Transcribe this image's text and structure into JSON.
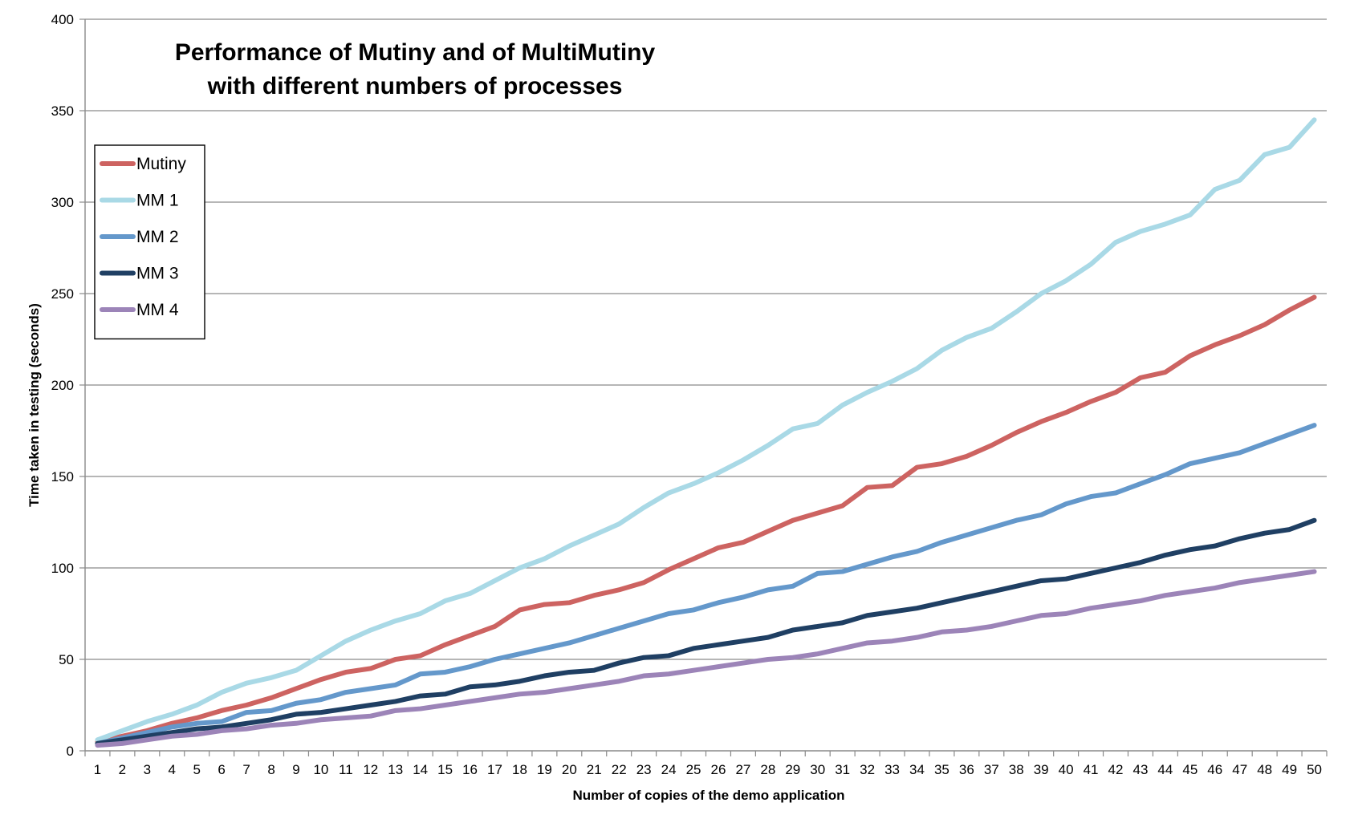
{
  "chart_data": {
    "type": "line",
    "title": [
      "Performance of Mutiny and of MultiMutiny",
      "with different numbers of processes"
    ],
    "xlabel": "Number of copies of the demo application",
    "ylabel": "Time taken in testing (seconds)",
    "ylim": [
      0,
      400
    ],
    "yticks": [
      0,
      50,
      100,
      150,
      200,
      250,
      300,
      350,
      400
    ],
    "grid": true,
    "legend_position": "top-left",
    "categories": [
      "1",
      "2",
      "3",
      "4",
      "5",
      "6",
      "7",
      "8",
      "9",
      "10",
      "11",
      "12",
      "13",
      "14",
      "15",
      "16",
      "17",
      "18",
      "19",
      "20",
      "21",
      "22",
      "23",
      "24",
      "25",
      "26",
      "27",
      "28",
      "29",
      "30",
      "31",
      "32",
      "33",
      "34",
      "35",
      "36",
      "37",
      "38",
      "39",
      "40",
      "41",
      "42",
      "43",
      "44",
      "45",
      "46",
      "47",
      "48",
      "49",
      "50"
    ],
    "series": [
      {
        "name": "Mutiny",
        "color": "#cd6361",
        "values": [
          5,
          8,
          11,
          15,
          18,
          22,
          25,
          29,
          34,
          39,
          43,
          45,
          50,
          52,
          58,
          63,
          68,
          77,
          80,
          81,
          85,
          88,
          92,
          99,
          105,
          111,
          114,
          120,
          126,
          130,
          134,
          144,
          145,
          155,
          157,
          161,
          167,
          174,
          180,
          185,
          191,
          196,
          204,
          207,
          216,
          222,
          227,
          233,
          241,
          248
        ]
      },
      {
        "name": "MM 1",
        "color": "#a9d9e6",
        "values": [
          6,
          11,
          16,
          20,
          25,
          32,
          37,
          40,
          44,
          52,
          60,
          66,
          71,
          75,
          82,
          86,
          93,
          100,
          105,
          112,
          118,
          124,
          133,
          141,
          146,
          152,
          159,
          167,
          176,
          179,
          189,
          196,
          202,
          209,
          219,
          226,
          231,
          240,
          250,
          257,
          266,
          278,
          284,
          288,
          293,
          307,
          312,
          326,
          330,
          345
        ]
      },
      {
        "name": "MM 2",
        "color": "#6498cb",
        "values": [
          4,
          7,
          10,
          13,
          15,
          16,
          21,
          22,
          26,
          28,
          32,
          34,
          36,
          42,
          43,
          46,
          50,
          53,
          56,
          59,
          63,
          67,
          71,
          75,
          77,
          81,
          84,
          88,
          90,
          97,
          98,
          102,
          106,
          109,
          114,
          118,
          122,
          126,
          129,
          135,
          139,
          141,
          146,
          151,
          157,
          160,
          163,
          168,
          173,
          178
        ]
      },
      {
        "name": "MM 3",
        "color": "#1f3f63",
        "values": [
          4,
          6,
          8,
          10,
          12,
          13,
          15,
          17,
          20,
          21,
          23,
          25,
          27,
          30,
          31,
          35,
          36,
          38,
          41,
          43,
          44,
          48,
          51,
          52,
          56,
          58,
          60,
          62,
          66,
          68,
          70,
          74,
          76,
          78,
          81,
          84,
          87,
          90,
          93,
          94,
          97,
          100,
          103,
          107,
          110,
          112,
          116,
          119,
          121,
          126
        ]
      },
      {
        "name": "MM 4",
        "color": "#9c84b8",
        "values": [
          3,
          4,
          6,
          8,
          9,
          11,
          12,
          14,
          15,
          17,
          18,
          19,
          22,
          23,
          25,
          27,
          29,
          31,
          32,
          34,
          36,
          38,
          41,
          42,
          44,
          46,
          48,
          50,
          51,
          53,
          56,
          59,
          60,
          62,
          65,
          66,
          68,
          71,
          74,
          75,
          78,
          80,
          82,
          85,
          87,
          89,
          92,
          94,
          96,
          98
        ]
      }
    ]
  }
}
